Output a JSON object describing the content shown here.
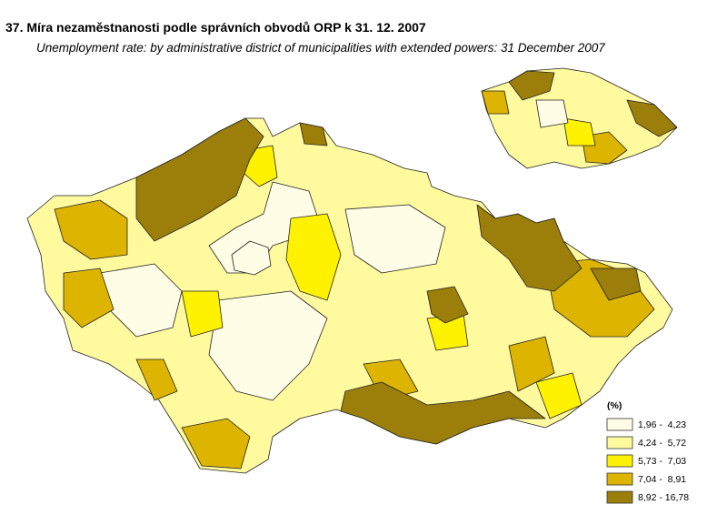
{
  "header": {
    "title": "37. Míra nezaměstnanosti podle správních obvodů ORP k 31. 12. 2007",
    "subtitle": "Unemployment rate: by administrative district of municipalities with extended powers: 31 December 2007"
  },
  "legend": {
    "unit": "(%)",
    "classes": [
      {
        "label": "1,96 -  4,23",
        "color": "#FFFDE6"
      },
      {
        "label": "4,24 -  5,72",
        "color": "#FFFA9E"
      },
      {
        "label": "5,73 -  7,03",
        "color": "#FFF200"
      },
      {
        "label": "7,04 -  8,91",
        "color": "#DDB400"
      },
      {
        "label": "8,92 - 16,78",
        "color": "#9C7E0A"
      }
    ]
  }
}
